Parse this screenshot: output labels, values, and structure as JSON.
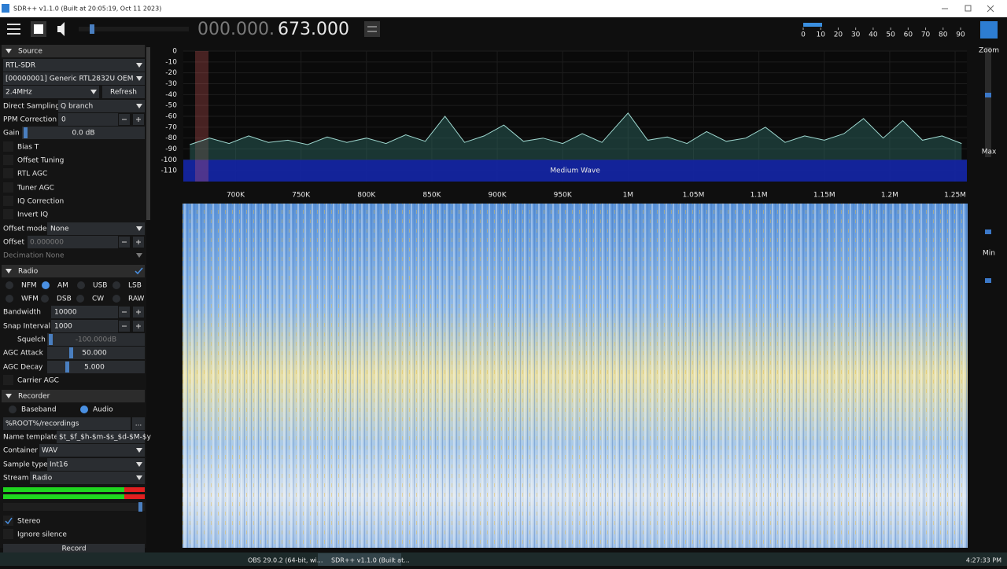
{
  "window": {
    "title": "SDR++ v1.1.0 (Built at 20:05:19, Oct 11 2023)"
  },
  "toolbar": {
    "frequency_dim": "000.000.",
    "frequency": "673.000",
    "volume_scale": {
      "xlim": [
        0,
        90
      ],
      "ticks": [
        0,
        10,
        20,
        30,
        40,
        50,
        60,
        70,
        80,
        90
      ]
    }
  },
  "side": {
    "zoom": "Zoom",
    "max": "Max",
    "min": "Min"
  },
  "source": {
    "title": "Source",
    "device_type": "RTL-SDR",
    "device": "[00000001] Generic RTL2832U OEM",
    "sample_rate": "2.4MHz",
    "refresh": "Refresh",
    "direct_sampling_label": "Direct Sampling",
    "direct_sampling": "Q branch",
    "ppm_label": "PPM Correction",
    "ppm": "0",
    "gain_label": "Gain",
    "gain": "0.0 dB",
    "bias_t": "Bias T",
    "offset_tuning": "Offset Tuning",
    "rtl_agc": "RTL AGC",
    "tuner_agc": "Tuner AGC",
    "iq_correction": "IQ Correction",
    "invert_iq": "Invert IQ",
    "offset_mode_label": "Offset mode",
    "offset_mode": "None",
    "offset_label": "Offset",
    "offset": "0.000000",
    "decimation_label": "Decimation",
    "decimation": "None"
  },
  "radio": {
    "title": "Radio",
    "modes": [
      "NFM",
      "AM",
      "USB",
      "LSB",
      "WFM",
      "DSB",
      "CW",
      "RAW"
    ],
    "bandwidth_label": "Bandwidth",
    "bandwidth": "10000",
    "snap_label": "Snap Interval",
    "snap": "1000",
    "squelch_label": "Squelch",
    "squelch": "-100.000dB",
    "agc_attack_label": "AGC Attack",
    "agc_attack": "50.000",
    "agc_decay_label": "AGC Decay",
    "agc_decay": "5.000",
    "carrier_agc": "Carrier AGC"
  },
  "recorder": {
    "title": "Recorder",
    "baseband": "Baseband",
    "audio": "Audio",
    "path": "%ROOT%/recordings",
    "browse": "...",
    "name_template_label": "Name template",
    "name_template": "$t_$f_$h-$m-$s_$d-$M-$y",
    "container_label": "Container",
    "container": "WAV",
    "sample_type_label": "Sample type",
    "sample_type": "Int16",
    "stream_label": "Stream",
    "stream": "Radio",
    "stereo": "Stereo",
    "ignore_silence": "Ignore silence",
    "record": "Record"
  },
  "spectrum": {
    "type": "line",
    "xlim": [
      660000,
      1259000
    ],
    "ylim": [
      -120,
      0
    ],
    "yticks": [
      0,
      -10,
      -20,
      -30,
      -40,
      -50,
      -60,
      -70,
      -80,
      -90,
      -100,
      -110
    ],
    "xticks": [
      {
        "value": 700000,
        "label": "700K"
      },
      {
        "value": 750000,
        "label": "750K"
      },
      {
        "value": 800000,
        "label": "800K"
      },
      {
        "value": 850000,
        "label": "850K"
      },
      {
        "value": 900000,
        "label": "900K"
      },
      {
        "value": 950000,
        "label": "950K"
      },
      {
        "value": 1000000,
        "label": "1M"
      },
      {
        "value": 1050000,
        "label": "1.05M"
      },
      {
        "value": 1100000,
        "label": "1.1M"
      },
      {
        "value": 1150000,
        "label": "1.15M"
      },
      {
        "value": 1200000,
        "label": "1.2M"
      },
      {
        "value": 1250000,
        "label": "1.25M"
      }
    ],
    "band_label": "Medium Wave",
    "trace": {
      "color": "#9fd8d0",
      "x": [
        665000,
        680000,
        695000,
        710000,
        725000,
        740000,
        755000,
        770000,
        785000,
        800000,
        815000,
        830000,
        845000,
        860000,
        875000,
        890000,
        905000,
        920000,
        935000,
        950000,
        965000,
        980000,
        1000000,
        1015000,
        1030000,
        1045000,
        1060000,
        1075000,
        1090000,
        1105000,
        1120000,
        1135000,
        1150000,
        1165000,
        1180000,
        1195000,
        1210000,
        1225000,
        1240000,
        1255000
      ],
      "values": [
        -86,
        -80,
        -85,
        -78,
        -84,
        -82,
        -86,
        -79,
        -84,
        -80,
        -85,
        -77,
        -83,
        -60,
        -84,
        -78,
        -68,
        -83,
        -80,
        -85,
        -76,
        -84,
        -57,
        -82,
        -79,
        -85,
        -74,
        -83,
        -80,
        -70,
        -84,
        -78,
        -82,
        -76,
        -62,
        -80,
        -64,
        -82,
        -78,
        -85
      ]
    }
  },
  "taskbar": {
    "obs": "OBS 29.0.2 (64-bit, wi...",
    "sdr": "SDR++ v1.1.0 (Built at...",
    "clock": "4:27:33 PM"
  }
}
